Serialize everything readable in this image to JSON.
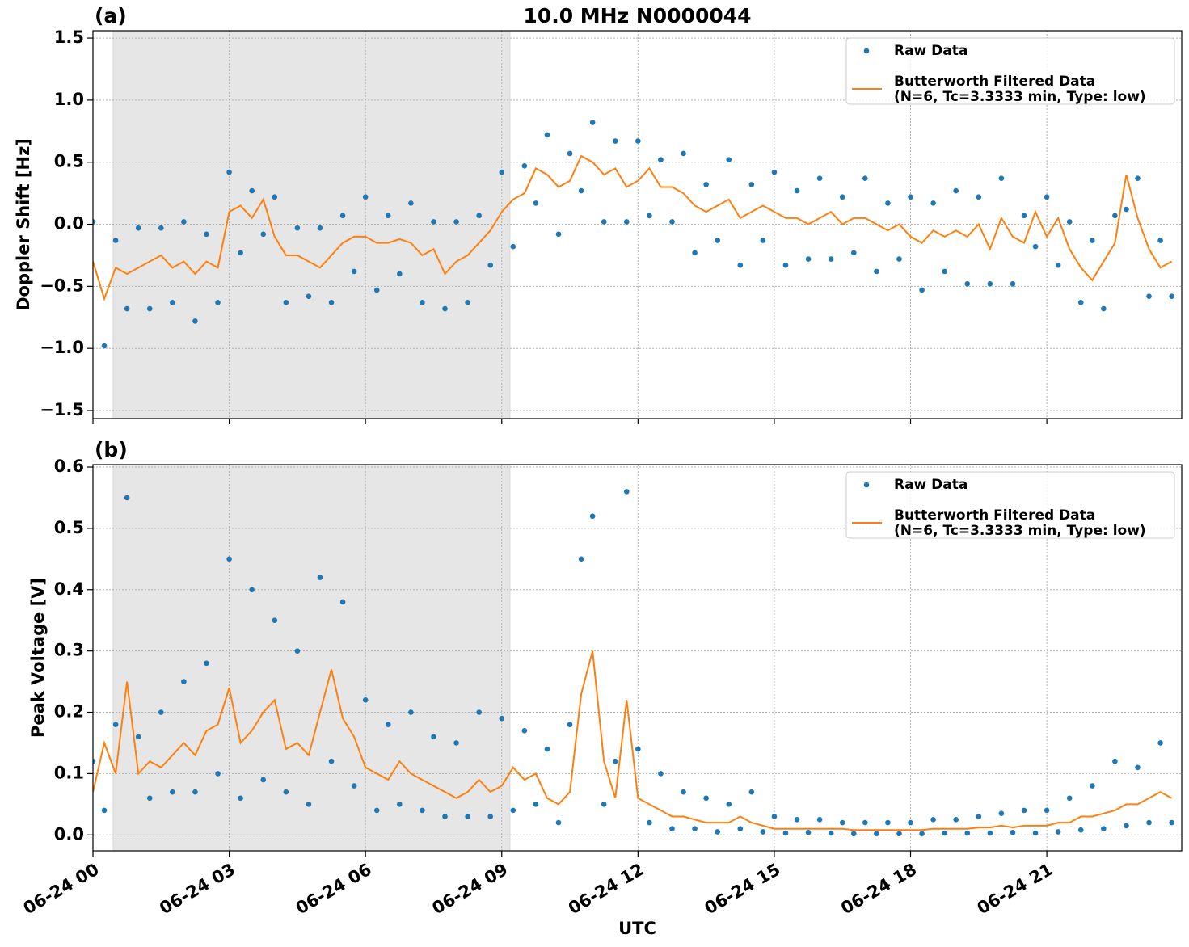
{
  "chart_data": [
    {
      "type": "scatter-line",
      "panel_label": "(a)",
      "title": "10.0 MHz N0000044",
      "ylabel": "Doppler Shift [Hz]",
      "xlim": [
        0,
        23.97
      ],
      "ylim": [
        -1.565,
        1.559
      ],
      "xticks": [
        0,
        3,
        6,
        9,
        12,
        15,
        18,
        21
      ],
      "yticks": [
        {
          "value": -1.5,
          "label": "−1.5"
        },
        {
          "value": -1.0,
          "label": "−1.0"
        },
        {
          "value": -0.5,
          "label": "−0.5"
        },
        {
          "value": 0.0,
          "label": "0.0"
        },
        {
          "value": 0.5,
          "label": "0.5"
        },
        {
          "value": 1.0,
          "label": "1.0"
        },
        {
          "value": 1.5,
          "label": "1.5"
        }
      ],
      "grid": true,
      "legend": "upper right",
      "shade": [
        0.445,
        9.18
      ],
      "x": [
        0,
        0.25,
        0.5,
        0.75,
        1,
        1.25,
        1.5,
        1.75,
        2,
        2.25,
        2.5,
        2.75,
        3,
        3.25,
        3.5,
        3.75,
        4,
        4.25,
        4.5,
        4.75,
        5,
        5.25,
        5.5,
        5.75,
        6,
        6.25,
        6.5,
        6.75,
        7,
        7.25,
        7.5,
        7.75,
        8,
        8.25,
        8.5,
        8.75,
        9,
        9.25,
        9.5,
        9.75,
        10,
        10.25,
        10.5,
        10.75,
        11,
        11.25,
        11.5,
        11.75,
        12,
        12.25,
        12.5,
        12.75,
        13,
        13.25,
        13.5,
        13.75,
        14,
        14.25,
        14.5,
        14.75,
        15,
        15.25,
        15.5,
        15.75,
        16,
        16.25,
        16.5,
        16.75,
        17,
        17.25,
        17.5,
        17.75,
        18,
        18.25,
        18.5,
        18.75,
        19,
        19.25,
        19.5,
        19.75,
        20,
        20.25,
        20.5,
        20.75,
        21,
        21.25,
        21.5,
        21.75,
        22,
        22.25,
        22.5,
        22.75,
        23,
        23.25,
        23.5,
        23.75
      ],
      "series": [
        {
          "name": "Raw Data",
          "color": "#1f77b4",
          "style": "points",
          "values": [
            0.02,
            -0.98,
            -0.13,
            -0.68,
            -0.03,
            -0.68,
            -0.03,
            -0.63,
            0.02,
            -0.78,
            -0.08,
            -0.63,
            0.42,
            -0.23,
            0.27,
            -0.08,
            0.22,
            -0.63,
            -0.03,
            -0.58,
            -0.03,
            -0.63,
            0.07,
            -0.38,
            0.22,
            -0.53,
            0.07,
            -0.4,
            0.17,
            -0.63,
            0.02,
            -0.68,
            0.02,
            -0.63,
            0.07,
            -0.33,
            0.42,
            -0.18,
            0.47,
            0.17,
            0.72,
            -0.08,
            0.57,
            0.27,
            0.82,
            0.02,
            0.67,
            0.02,
            0.67,
            0.07,
            0.52,
            0.02,
            0.57,
            -0.23,
            0.32,
            -0.13,
            0.52,
            -0.33,
            0.32,
            -0.13,
            0.42,
            -0.33,
            0.27,
            -0.28,
            0.37,
            -0.28,
            0.22,
            -0.23,
            0.37,
            -0.38,
            0.17,
            -0.28,
            0.22,
            -0.53,
            0.17,
            -0.38,
            0.27,
            -0.48,
            0.22,
            -0.48,
            0.37,
            -0.48,
            0.07,
            -0.18,
            0.22,
            -0.33,
            0.02,
            -0.63,
            -0.13,
            -0.68,
            0.07,
            0.12,
            0.37,
            -0.58,
            -0.13,
            -0.58
          ]
        },
        {
          "name": "Butterworth Filtered Data\n(N=6, Tc=3.3333 min, Type: low)",
          "color": "#ff7f0e",
          "style": "line",
          "values": [
            -0.3,
            -0.6,
            -0.35,
            -0.4,
            -0.35,
            -0.3,
            -0.25,
            -0.35,
            -0.3,
            -0.4,
            -0.3,
            -0.35,
            0.1,
            0.15,
            0.05,
            0.2,
            -0.1,
            -0.25,
            -0.25,
            -0.3,
            -0.35,
            -0.25,
            -0.15,
            -0.1,
            -0.1,
            -0.15,
            -0.15,
            -0.12,
            -0.15,
            -0.25,
            -0.2,
            -0.4,
            -0.3,
            -0.25,
            -0.15,
            -0.05,
            0.1,
            0.2,
            0.25,
            0.45,
            0.4,
            0.3,
            0.35,
            0.55,
            0.5,
            0.4,
            0.45,
            0.3,
            0.35,
            0.45,
            0.3,
            0.3,
            0.25,
            0.15,
            0.1,
            0.15,
            0.2,
            0.05,
            0.1,
            0.15,
            0.1,
            0.05,
            0.05,
            0.0,
            0.05,
            0.1,
            0.0,
            0.05,
            0.05,
            0.0,
            -0.05,
            0.0,
            -0.1,
            -0.15,
            -0.05,
            -0.1,
            -0.05,
            -0.1,
            0.0,
            -0.2,
            0.05,
            -0.1,
            -0.15,
            0.1,
            -0.1,
            0.05,
            -0.2,
            -0.35,
            -0.45,
            -0.3,
            -0.15,
            0.4,
            0.05,
            -0.2,
            -0.35,
            -0.3
          ]
        }
      ]
    },
    {
      "type": "scatter-line",
      "panel_label": "(b)",
      "ylabel": "Peak Voltage [V]",
      "xlabel": "UTC",
      "xlim": [
        0,
        23.97
      ],
      "ylim": [
        -0.026,
        0.604
      ],
      "xticks": [
        {
          "value": 0,
          "label": "06-24 00"
        },
        {
          "value": 3,
          "label": "06-24 03"
        },
        {
          "value": 6,
          "label": "06-24 06"
        },
        {
          "value": 9,
          "label": "06-24 09"
        },
        {
          "value": 12,
          "label": "06-24 12"
        },
        {
          "value": 15,
          "label": "06-24 15"
        },
        {
          "value": 18,
          "label": "06-24 18"
        },
        {
          "value": 21,
          "label": "06-24 21"
        }
      ],
      "yticks": [
        {
          "value": 0.0,
          "label": "0.0"
        },
        0.1,
        0.2,
        0.3,
        0.4,
        0.5,
        0.6
      ],
      "grid": true,
      "legend": "upper right",
      "shade": [
        0.445,
        9.18
      ],
      "x": [
        0,
        0.25,
        0.5,
        0.75,
        1,
        1.25,
        1.5,
        1.75,
        2,
        2.25,
        2.5,
        2.75,
        3,
        3.25,
        3.5,
        3.75,
        4,
        4.25,
        4.5,
        4.75,
        5,
        5.25,
        5.5,
        5.75,
        6,
        6.25,
        6.5,
        6.75,
        7,
        7.25,
        7.5,
        7.75,
        8,
        8.25,
        8.5,
        8.75,
        9,
        9.25,
        9.5,
        9.75,
        10,
        10.25,
        10.5,
        10.75,
        11,
        11.25,
        11.5,
        11.75,
        12,
        12.25,
        12.5,
        12.75,
        13,
        13.25,
        13.5,
        13.75,
        14,
        14.25,
        14.5,
        14.75,
        15,
        15.25,
        15.5,
        15.75,
        16,
        16.25,
        16.5,
        16.75,
        17,
        17.25,
        17.5,
        17.75,
        18,
        18.25,
        18.5,
        18.75,
        19,
        19.25,
        19.5,
        19.75,
        20,
        20.25,
        20.5,
        20.75,
        21,
        21.25,
        21.5,
        21.75,
        22,
        22.25,
        22.5,
        22.75,
        23,
        23.25,
        23.5,
        23.75
      ],
      "series": [
        {
          "name": "Raw Data",
          "color": "#1f77b4",
          "style": "points",
          "values": [
            0.12,
            0.04,
            0.18,
            0.55,
            0.16,
            0.06,
            0.2,
            0.07,
            0.25,
            0.07,
            0.28,
            0.1,
            0.45,
            0.06,
            0.4,
            0.09,
            0.35,
            0.07,
            0.3,
            0.05,
            0.42,
            0.12,
            0.38,
            0.08,
            0.22,
            0.04,
            0.18,
            0.05,
            0.2,
            0.04,
            0.16,
            0.03,
            0.15,
            0.03,
            0.2,
            0.03,
            0.19,
            0.04,
            0.17,
            0.05,
            0.14,
            0.02,
            0.18,
            0.45,
            0.52,
            0.05,
            0.12,
            0.56,
            0.14,
            0.02,
            0.1,
            0.01,
            0.07,
            0.01,
            0.06,
            0.005,
            0.05,
            0.01,
            0.07,
            0.005,
            0.03,
            0.003,
            0.025,
            0.004,
            0.025,
            0.003,
            0.02,
            0.002,
            0.02,
            0.002,
            0.02,
            0.002,
            0.02,
            0.002,
            0.025,
            0.003,
            0.025,
            0.003,
            0.03,
            0.003,
            0.035,
            0.004,
            0.04,
            0.003,
            0.04,
            0.005,
            0.06,
            0.008,
            0.08,
            0.01,
            0.12,
            0.015,
            0.11,
            0.02,
            0.15,
            0.02
          ]
        },
        {
          "name": "Butterworth Filtered Data\n(N=6, Tc=3.3333 min, Type: low)",
          "color": "#ff7f0e",
          "style": "line",
          "values": [
            0.07,
            0.15,
            0.1,
            0.25,
            0.1,
            0.12,
            0.11,
            0.13,
            0.15,
            0.13,
            0.17,
            0.18,
            0.24,
            0.15,
            0.17,
            0.2,
            0.22,
            0.14,
            0.15,
            0.13,
            0.2,
            0.27,
            0.19,
            0.16,
            0.11,
            0.1,
            0.09,
            0.12,
            0.1,
            0.09,
            0.08,
            0.07,
            0.06,
            0.07,
            0.09,
            0.07,
            0.08,
            0.11,
            0.09,
            0.1,
            0.06,
            0.05,
            0.07,
            0.23,
            0.3,
            0.12,
            0.06,
            0.22,
            0.06,
            0.05,
            0.04,
            0.03,
            0.03,
            0.025,
            0.02,
            0.02,
            0.02,
            0.03,
            0.02,
            0.015,
            0.01,
            0.01,
            0.01,
            0.01,
            0.01,
            0.01,
            0.01,
            0.008,
            0.008,
            0.008,
            0.008,
            0.008,
            0.008,
            0.008,
            0.01,
            0.01,
            0.01,
            0.01,
            0.012,
            0.012,
            0.015,
            0.012,
            0.015,
            0.015,
            0.015,
            0.02,
            0.02,
            0.03,
            0.03,
            0.035,
            0.04,
            0.05,
            0.05,
            0.06,
            0.07,
            0.06
          ]
        }
      ]
    }
  ]
}
